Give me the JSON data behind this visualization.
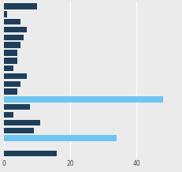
{
  "values": [
    10,
    1,
    5,
    7,
    6,
    5,
    4,
    4,
    3,
    7,
    5,
    4,
    48,
    8,
    3,
    11,
    9,
    34,
    0,
    16
  ],
  "colors": [
    "#1e3f5c",
    "#1e3f5c",
    "#1e3f5c",
    "#1e3f5c",
    "#1e3f5c",
    "#1e3f5c",
    "#1e3f5c",
    "#1e3f5c",
    "#1e3f5c",
    "#1e3f5c",
    "#1e3f5c",
    "#1e3f5c",
    "#6ec6f0",
    "#1e3f5c",
    "#1e3f5c",
    "#1e3f5c",
    "#1e3f5c",
    "#6ec6f0",
    "#1e3f5c",
    "#1e3f5c"
  ],
  "background_color": "#ebebeb",
  "grid_color": "#ffffff",
  "xticks": [
    0,
    20,
    40
  ],
  "xlim": [
    -0.5,
    52
  ],
  "bar_height": 0.75,
  "figsize": [
    2.31,
    2.18
  ],
  "dpi": 100
}
